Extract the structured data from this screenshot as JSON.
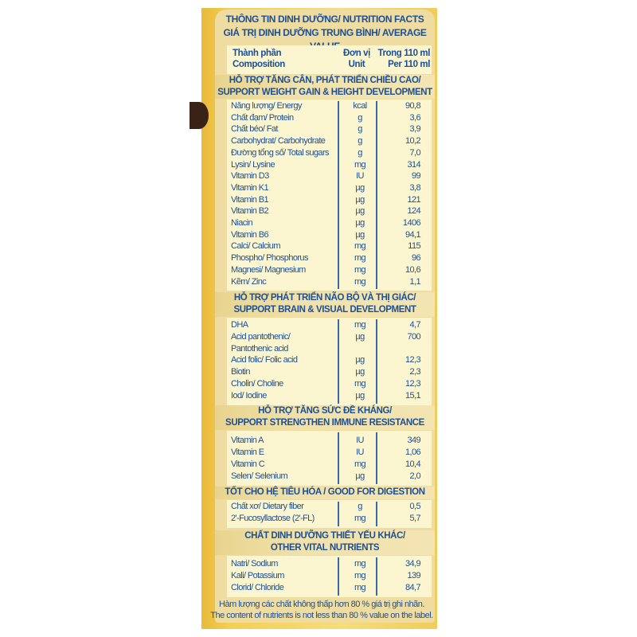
{
  "title": [
    "THÔNG TIN DINH DƯỠNG/ NUTRITION FACTS",
    "GIÁ TRỊ DINH DƯỠNG TRUNG BÌNH/ AVERAGE VALUE"
  ],
  "columns": {
    "composition": [
      "Thành phần",
      "Composition"
    ],
    "unit": [
      "Đơn vị",
      "Unit"
    ],
    "amount": [
      "Trong 110 ml",
      "Per 110 ml"
    ]
  },
  "sections": [
    {
      "heading": [
        "HỖ TRỢ TĂNG CÂN, PHÁT TRIỂN CHIỀU CAO/",
        "SUPPORT WEIGHT GAIN & HEIGHT DEVELOPMENT"
      ],
      "rows": [
        {
          "name": "Năng lượng/ Energy",
          "unit": "kcal",
          "value": "90,8"
        },
        {
          "name": "Chất đạm/ Protein",
          "unit": "g",
          "value": "3,6"
        },
        {
          "name": "Chất béo/ Fat",
          "unit": "g",
          "value": "3,9"
        },
        {
          "name": "Carbohydrat/ Carbohydrate",
          "unit": "g",
          "value": "10,2"
        },
        {
          "name": "Đường tổng số/ Total sugars",
          "unit": "g",
          "value": "7,0"
        },
        {
          "name": "Lysin/ Lysine",
          "unit": "mg",
          "value": "314"
        },
        {
          "name": "Vitamin D3",
          "unit": "IU",
          "value": "99"
        },
        {
          "name": "Vitamin K1",
          "unit": "µg",
          "value": "3,8"
        },
        {
          "name": "Vitamin B1",
          "unit": "µg",
          "value": "121"
        },
        {
          "name": "Vitamin B2",
          "unit": "µg",
          "value": "124"
        },
        {
          "name": "Niacin",
          "unit": "µg",
          "value": "1406"
        },
        {
          "name": "Vitamin B6",
          "unit": "µg",
          "value": "94,1"
        },
        {
          "name": "Calci/ Calcium",
          "unit": "mg",
          "value": "115"
        },
        {
          "name": "Phospho/ Phosphorus",
          "unit": "mg",
          "value": "96"
        },
        {
          "name": "Magnesi/ Magnesium",
          "unit": "mg",
          "value": "10,6"
        },
        {
          "name": "Kẽm/ Zinc",
          "unit": "mg",
          "value": "1,1"
        }
      ]
    },
    {
      "heading": [
        "HỖ TRỢ PHÁT TRIỂN NÃO BỘ VÀ THỊ GIÁC/",
        "SUPPORT BRAIN & VISUAL DEVELOPMENT"
      ],
      "rows": [
        {
          "name": "DHA",
          "unit": "mg",
          "value": "4,7"
        },
        {
          "name": "Acid pantothenic/",
          "unit": "µg",
          "value": "700"
        },
        {
          "name": "Pantothenic acid",
          "unit": "",
          "value": ""
        },
        {
          "name": "Acid folic/ Folic acid",
          "unit": "µg",
          "value": "12,3"
        },
        {
          "name": "Biotin",
          "unit": "µg",
          "value": "2,3"
        },
        {
          "name": "Cholin/ Choline",
          "unit": "mg",
          "value": "12,3"
        },
        {
          "name": "Iod/ Iodine",
          "unit": "µg",
          "value": "15,1"
        }
      ]
    },
    {
      "heading": [
        "HỖ TRỢ TĂNG SỨC ĐỀ KHÁNG/",
        "SUPPORT STRENGTHEN IMMUNE RESISTANCE"
      ],
      "rows": [
        {
          "name": "Vitamin A",
          "unit": "IU",
          "value": "349"
        },
        {
          "name": "Vitamin E",
          "unit": "IU",
          "value": "1,06"
        },
        {
          "name": "Vitamin C",
          "unit": "mg",
          "value": "10,4"
        },
        {
          "name": "Selen/ Selenium",
          "unit": "µg",
          "value": "2,0"
        }
      ]
    },
    {
      "heading": [
        "TỐT CHO HỆ TIÊU HÓA / GOOD FOR DIGESTION"
      ],
      "rows": [
        {
          "name": "Chất xơ/ Dietary fiber",
          "unit": "g",
          "value": "0,5"
        },
        {
          "name": "2'-Fucosyllactose (2'-FL)",
          "unit": "mg",
          "value": "5,7"
        }
      ]
    },
    {
      "heading": [
        "CHẤT DINH DƯỠNG THIẾT YẾU KHÁC/",
        "OTHER VITAL NUTRIENTS"
      ],
      "rows": [
        {
          "name": "Natri/ Sodium",
          "unit": "mg",
          "value": "34,9"
        },
        {
          "name": "Kali/ Potassium",
          "unit": "mg",
          "value": "139"
        },
        {
          "name": "Clorid/ Chloride",
          "unit": "mg",
          "value": "84,7"
        }
      ]
    }
  ],
  "footer": [
    "Hàm lượng các chất không thấp hơn 80 % giá trị ghi nhãn.",
    "The content of nutrients is not less than 80 % value on the label."
  ]
}
